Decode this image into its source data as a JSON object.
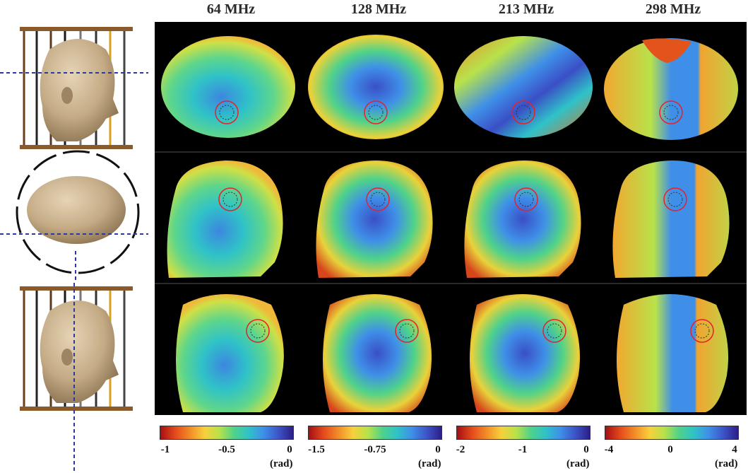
{
  "columns": [
    {
      "freq": "64 MHz",
      "ticks": [
        "-1",
        "-0.5",
        "0"
      ],
      "unit": "(rad)"
    },
    {
      "freq": "128 MHz",
      "ticks": [
        "-1.5",
        "-0.75",
        "0"
      ],
      "unit": "(rad)"
    },
    {
      "freq": "213 MHz",
      "ticks": [
        "-2",
        "-1",
        "0"
      ],
      "unit": "(rad)"
    },
    {
      "freq": "298 MHz",
      "ticks": [
        "-4",
        "0",
        "4"
      ],
      "unit": "(rad)"
    }
  ],
  "colors": {
    "background": "#000000",
    "roi_circle": "#e8202a",
    "guide_line": "#2b3a9e",
    "head": "#c9b393"
  },
  "rows": [
    "axial-slice",
    "sagittal-slice",
    "coronal-slice"
  ],
  "icons": [
    "head-side-view-icon",
    "head-top-view-icon",
    "head-side-view-icon"
  ]
}
